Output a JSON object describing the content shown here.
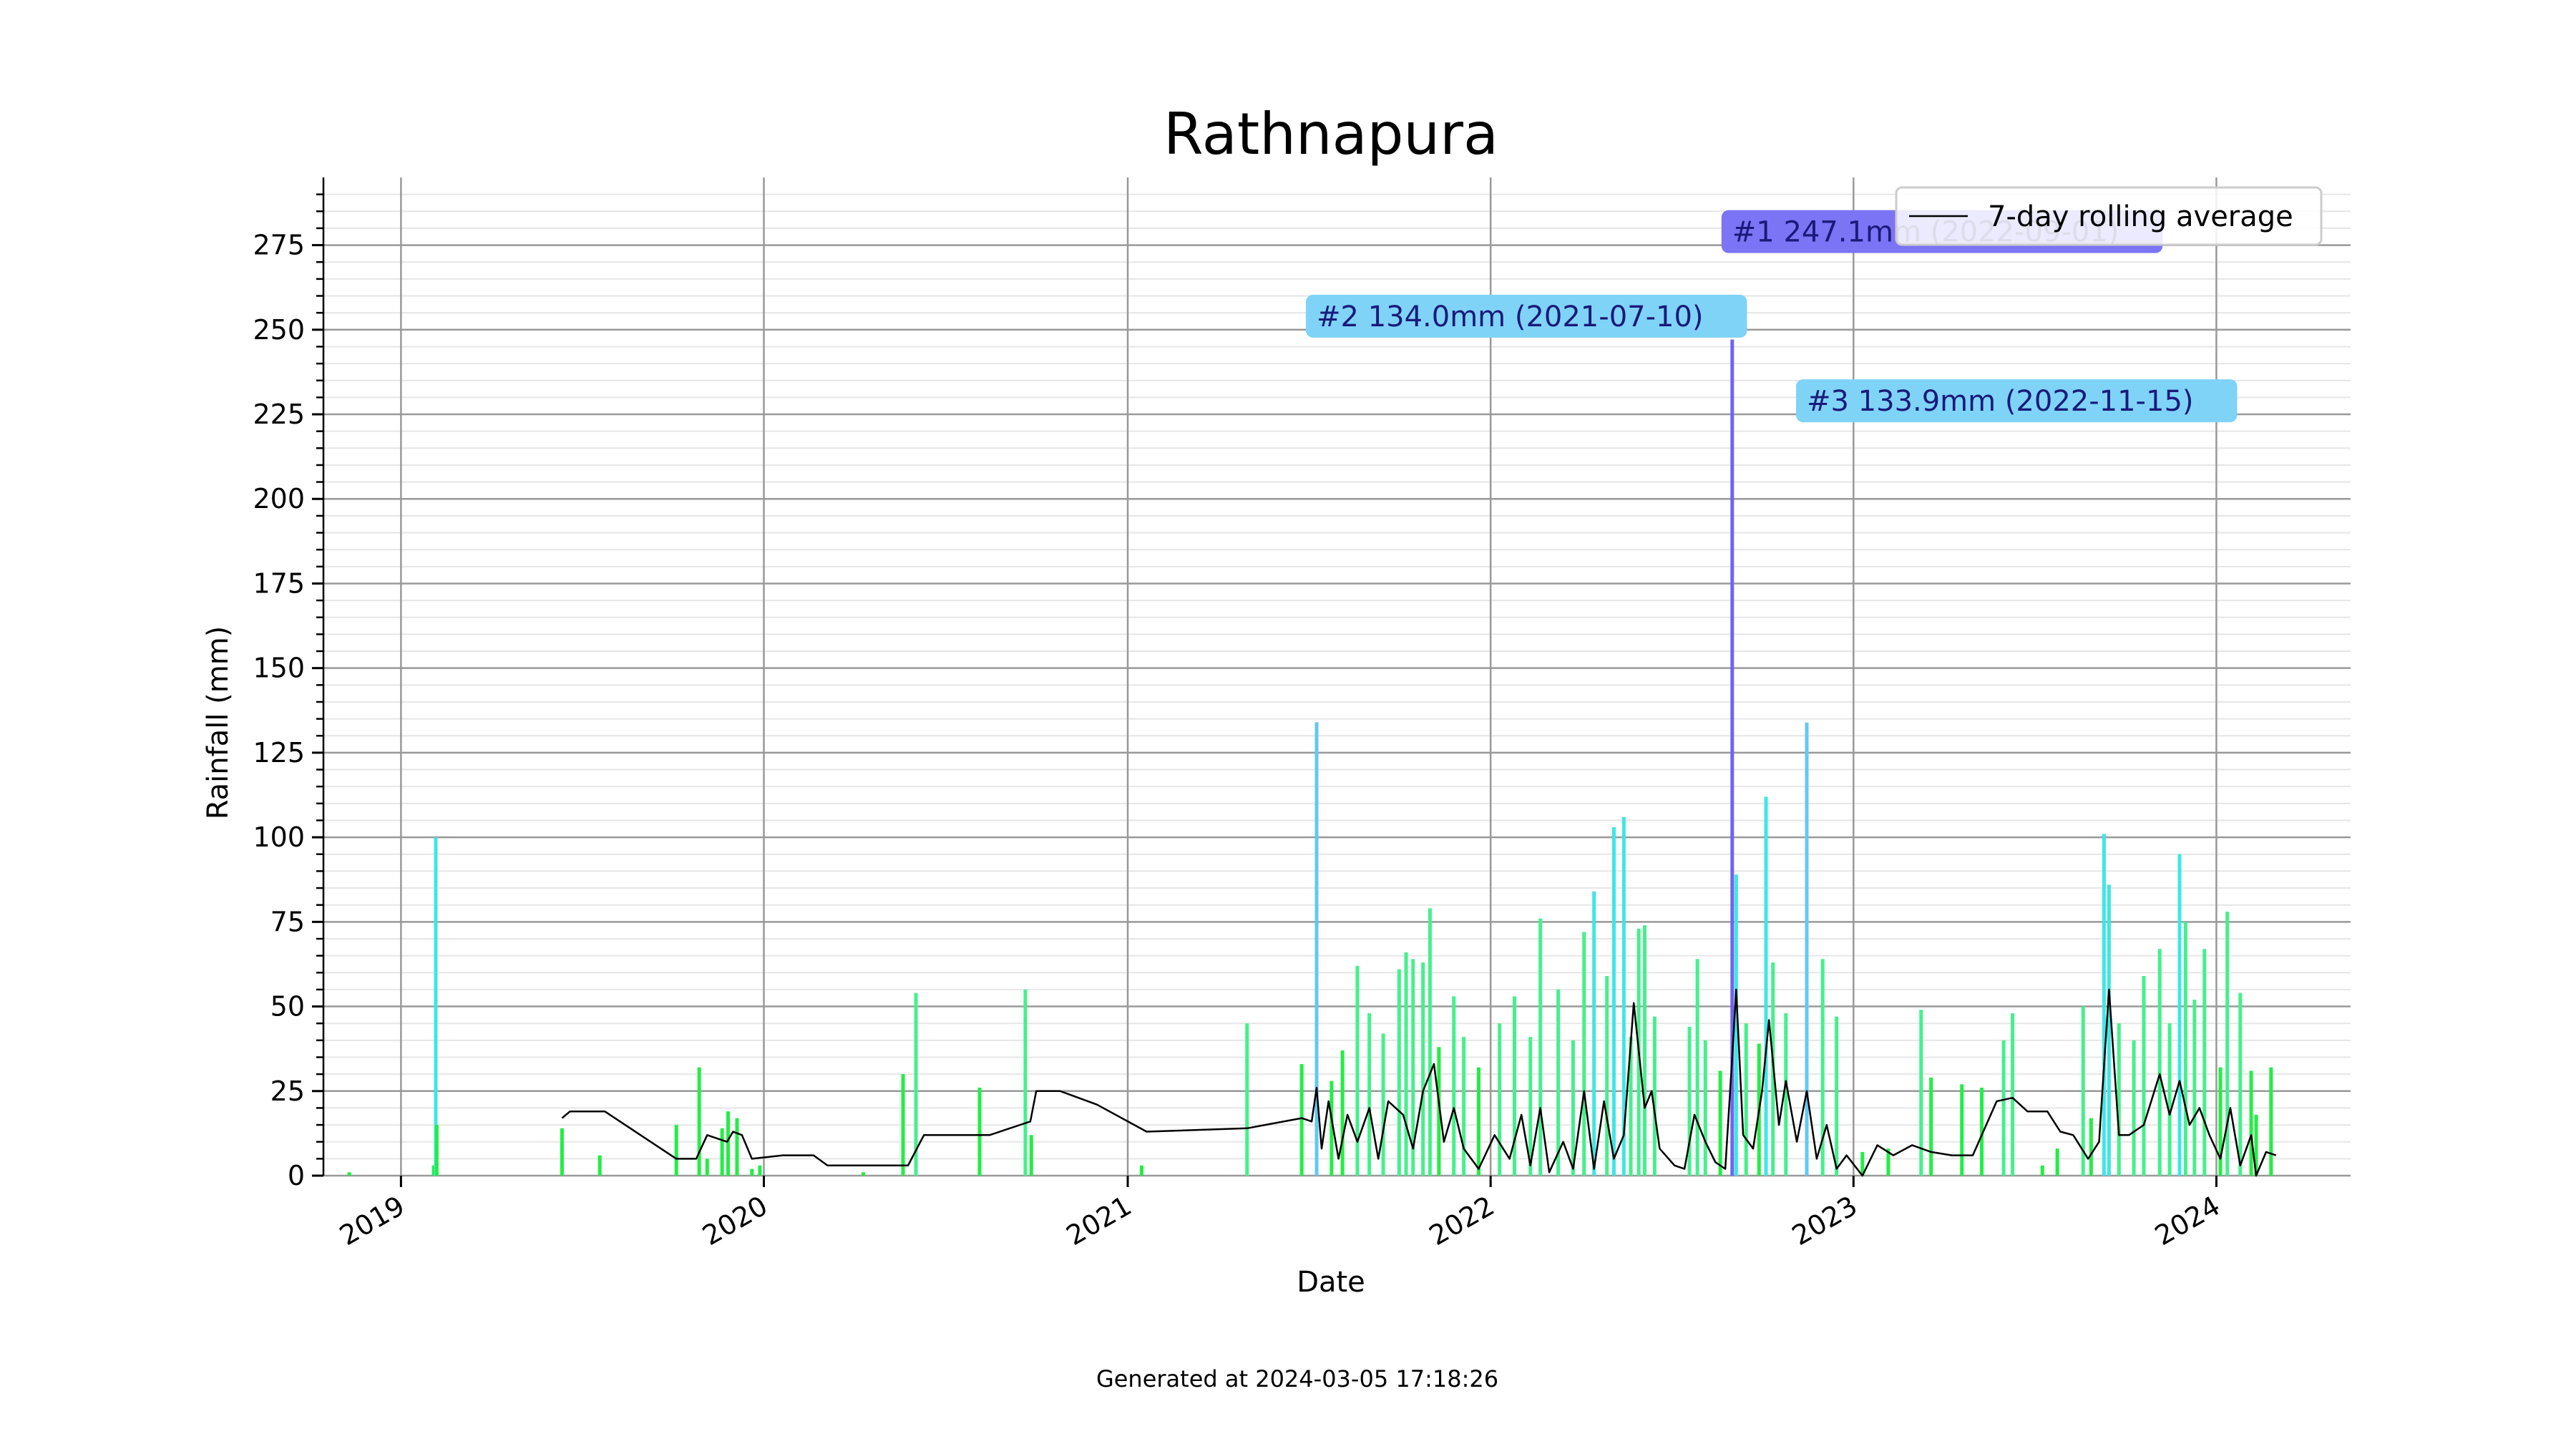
{
  "chart_data": {
    "type": "bar",
    "title": "Rathnapura",
    "xlabel": "Date",
    "ylabel": "Rainfall (mm)",
    "ylim": [
      0,
      295
    ],
    "xlim": [
      "2018-10-15",
      "2024-05-15"
    ],
    "y_ticks": [
      0,
      25,
      50,
      75,
      100,
      125,
      150,
      175,
      200,
      225,
      250,
      275
    ],
    "x_ticks": [
      "2019",
      "2020",
      "2021",
      "2022",
      "2023",
      "2024"
    ],
    "grid": true,
    "legend": {
      "position": "top-right",
      "entries": [
        "7-day rolling average"
      ]
    },
    "series": [
      {
        "values_type": "daily rainfall bars",
        "points": [
          [
            "2018-11-10",
            1
          ],
          [
            "2019-02-03",
            3
          ],
          [
            "2019-02-05",
            100
          ],
          [
            "2019-02-06",
            15
          ],
          [
            "2019-06-12",
            14
          ],
          [
            "2019-07-20",
            6
          ],
          [
            "2019-10-05",
            15
          ],
          [
            "2019-10-28",
            32
          ],
          [
            "2019-11-05",
            5
          ],
          [
            "2019-11-20",
            14
          ],
          [
            "2019-11-26",
            19
          ],
          [
            "2019-12-05",
            17
          ],
          [
            "2019-12-20",
            2
          ],
          [
            "2019-12-28",
            3
          ],
          [
            "2020-04-10",
            1
          ],
          [
            "2020-05-20",
            30
          ],
          [
            "2020-06-02",
            54
          ],
          [
            "2020-08-05",
            26
          ],
          [
            "2020-09-20",
            55
          ],
          [
            "2020-09-26",
            12
          ],
          [
            "2021-01-15",
            3
          ],
          [
            "2021-05-01",
            45
          ],
          [
            "2021-06-25",
            33
          ],
          [
            "2021-07-10",
            134
          ],
          [
            "2021-07-25",
            28
          ],
          [
            "2021-08-05",
            37
          ],
          [
            "2021-08-20",
            62
          ],
          [
            "2021-09-01",
            48
          ],
          [
            "2021-09-15",
            42
          ],
          [
            "2021-10-01",
            61
          ],
          [
            "2021-10-08",
            66
          ],
          [
            "2021-10-15",
            64
          ],
          [
            "2021-10-25",
            63
          ],
          [
            "2021-11-01",
            79
          ],
          [
            "2021-11-10",
            38
          ],
          [
            "2021-11-25",
            53
          ],
          [
            "2021-12-05",
            41
          ],
          [
            "2021-12-20",
            32
          ],
          [
            "2022-01-10",
            45
          ],
          [
            "2022-01-25",
            53
          ],
          [
            "2022-02-10",
            41
          ],
          [
            "2022-02-20",
            76
          ],
          [
            "2022-03-10",
            55
          ],
          [
            "2022-03-25",
            40
          ],
          [
            "2022-04-05",
            72
          ],
          [
            "2022-04-15",
            84
          ],
          [
            "2022-04-28",
            59
          ],
          [
            "2022-05-05",
            103
          ],
          [
            "2022-05-15",
            106
          ],
          [
            "2022-05-22",
            41
          ],
          [
            "2022-05-30",
            73
          ],
          [
            "2022-06-05",
            74
          ],
          [
            "2022-06-15",
            47
          ],
          [
            "2022-07-20",
            44
          ],
          [
            "2022-07-28",
            64
          ],
          [
            "2022-08-05",
            40
          ],
          [
            "2022-08-20",
            31
          ],
          [
            "2022-09-01",
            247.1
          ],
          [
            "2022-09-05",
            89
          ],
          [
            "2022-09-15",
            45
          ],
          [
            "2022-09-28",
            39
          ],
          [
            "2022-10-05",
            112
          ],
          [
            "2022-10-12",
            63
          ],
          [
            "2022-10-25",
            48
          ],
          [
            "2022-11-15",
            133.9
          ],
          [
            "2022-12-01",
            64
          ],
          [
            "2022-12-15",
            47
          ],
          [
            "2023-01-10",
            7
          ],
          [
            "2023-02-05",
            8
          ],
          [
            "2023-03-10",
            49
          ],
          [
            "2023-03-20",
            29
          ],
          [
            "2023-04-20",
            27
          ],
          [
            "2023-05-10",
            26
          ],
          [
            "2023-06-01",
            40
          ],
          [
            "2023-06-10",
            48
          ],
          [
            "2023-07-10",
            3
          ],
          [
            "2023-07-25",
            8
          ],
          [
            "2023-08-20",
            50
          ],
          [
            "2023-08-28",
            17
          ],
          [
            "2023-09-10",
            101
          ],
          [
            "2023-09-15",
            86
          ],
          [
            "2023-09-25",
            45
          ],
          [
            "2023-10-10",
            40
          ],
          [
            "2023-10-20",
            59
          ],
          [
            "2023-11-05",
            67
          ],
          [
            "2023-11-15",
            45
          ],
          [
            "2023-11-25",
            95
          ],
          [
            "2023-12-01",
            75
          ],
          [
            "2023-12-10",
            52
          ],
          [
            "2023-12-20",
            67
          ],
          [
            "2024-01-05",
            32
          ],
          [
            "2024-01-12",
            78
          ],
          [
            "2024-01-25",
            54
          ],
          [
            "2024-02-05",
            31
          ],
          [
            "2024-02-10",
            18
          ],
          [
            "2024-02-25",
            32
          ]
        ]
      },
      {
        "name": "7-day rolling average",
        "type": "line",
        "points": [
          [
            "2019-06-12",
            17
          ],
          [
            "2019-06-20",
            19
          ],
          [
            "2019-07-25",
            19
          ],
          [
            "2019-10-05",
            5
          ],
          [
            "2019-10-25",
            5
          ],
          [
            "2019-11-05",
            12
          ],
          [
            "2019-11-25",
            10
          ],
          [
            "2019-12-01",
            13
          ],
          [
            "2019-12-10",
            12
          ],
          [
            "2019-12-20",
            5
          ],
          [
            "2020-01-20",
            6
          ],
          [
            "2020-02-20",
            6
          ],
          [
            "2020-03-05",
            3
          ],
          [
            "2020-04-01",
            3
          ],
          [
            "2020-05-25",
            3
          ],
          [
            "2020-06-10",
            12
          ],
          [
            "2020-08-15",
            12
          ],
          [
            "2020-09-25",
            16
          ],
          [
            "2020-10-01",
            25
          ],
          [
            "2020-10-25",
            25
          ],
          [
            "2020-12-01",
            21
          ],
          [
            "2021-01-20",
            13
          ],
          [
            "2021-05-01",
            14
          ],
          [
            "2021-06-25",
            17
          ],
          [
            "2021-07-05",
            16
          ],
          [
            "2021-07-10",
            26
          ],
          [
            "2021-07-15",
            8
          ],
          [
            "2021-07-22",
            22
          ],
          [
            "2021-08-01",
            5
          ],
          [
            "2021-08-10",
            18
          ],
          [
            "2021-08-20",
            10
          ],
          [
            "2021-09-01",
            20
          ],
          [
            "2021-09-10",
            5
          ],
          [
            "2021-09-20",
            22
          ],
          [
            "2021-10-05",
            18
          ],
          [
            "2021-10-15",
            8
          ],
          [
            "2021-10-25",
            25
          ],
          [
            "2021-11-05",
            33
          ],
          [
            "2021-11-15",
            10
          ],
          [
            "2021-11-25",
            20
          ],
          [
            "2021-12-05",
            8
          ],
          [
            "2021-12-20",
            2
          ],
          [
            "2022-01-05",
            12
          ],
          [
            "2022-01-20",
            5
          ],
          [
            "2022-02-01",
            18
          ],
          [
            "2022-02-10",
            3
          ],
          [
            "2022-02-20",
            20
          ],
          [
            "2022-03-01",
            1
          ],
          [
            "2022-03-15",
            10
          ],
          [
            "2022-03-25",
            2
          ],
          [
            "2022-04-05",
            25
          ],
          [
            "2022-04-15",
            2
          ],
          [
            "2022-04-25",
            22
          ],
          [
            "2022-05-05",
            5
          ],
          [
            "2022-05-15",
            12
          ],
          [
            "2022-05-25",
            51
          ],
          [
            "2022-06-05",
            20
          ],
          [
            "2022-06-12",
            25
          ],
          [
            "2022-06-20",
            8
          ],
          [
            "2022-07-05",
            3
          ],
          [
            "2022-07-15",
            2
          ],
          [
            "2022-07-25",
            18
          ],
          [
            "2022-08-05",
            10
          ],
          [
            "2022-08-15",
            4
          ],
          [
            "2022-08-25",
            2
          ],
          [
            "2022-09-01",
            35
          ],
          [
            "2022-09-05",
            55
          ],
          [
            "2022-09-12",
            12
          ],
          [
            "2022-09-22",
            8
          ],
          [
            "2022-10-01",
            25
          ],
          [
            "2022-10-08",
            46
          ],
          [
            "2022-10-18",
            15
          ],
          [
            "2022-10-25",
            28
          ],
          [
            "2022-11-05",
            10
          ],
          [
            "2022-11-15",
            25
          ],
          [
            "2022-11-25",
            5
          ],
          [
            "2022-12-05",
            15
          ],
          [
            "2022-12-15",
            2
          ],
          [
            "2022-12-25",
            6
          ],
          [
            "2023-01-10",
            0
          ],
          [
            "2023-01-25",
            9
          ],
          [
            "2023-02-10",
            6
          ],
          [
            "2023-03-01",
            9
          ],
          [
            "2023-03-20",
            7
          ],
          [
            "2023-04-10",
            6
          ],
          [
            "2023-05-01",
            6
          ],
          [
            "2023-05-25",
            22
          ],
          [
            "2023-06-10",
            23
          ],
          [
            "2023-06-25",
            19
          ],
          [
            "2023-07-15",
            19
          ],
          [
            "2023-07-28",
            13
          ],
          [
            "2023-08-10",
            12
          ],
          [
            "2023-08-25",
            5
          ],
          [
            "2023-09-05",
            10
          ],
          [
            "2023-09-15",
            55
          ],
          [
            "2023-09-25",
            12
          ],
          [
            "2023-10-05",
            12
          ],
          [
            "2023-10-20",
            15
          ],
          [
            "2023-11-05",
            30
          ],
          [
            "2023-11-15",
            18
          ],
          [
            "2023-11-25",
            28
          ],
          [
            "2023-12-05",
            15
          ],
          [
            "2023-12-15",
            20
          ],
          [
            "2023-12-25",
            12
          ],
          [
            "2024-01-05",
            5
          ],
          [
            "2024-01-15",
            20
          ],
          [
            "2024-01-25",
            3
          ],
          [
            "2024-02-05",
            12
          ],
          [
            "2024-02-10",
            0
          ],
          [
            "2024-02-20",
            7
          ],
          [
            "2024-03-01",
            6
          ]
        ]
      }
    ],
    "annotations": [
      {
        "text": "#1 247.1mm (2022-09-01)",
        "date": "2022-09-01",
        "value": 247.1,
        "y_pos": 279,
        "color": "#7b74f4"
      },
      {
        "text": "#2 134.0mm (2021-07-10)",
        "date": "2021-07-10",
        "value": 134.0,
        "y_pos": 254,
        "color": "#7fd3f7"
      },
      {
        "text": "#3 133.9mm (2022-11-15)",
        "date": "2022-11-15",
        "value": 133.9,
        "y_pos": 229,
        "color": "#7fd3f7"
      }
    ]
  },
  "footer": "Generated at 2024-03-05 17:18:26"
}
